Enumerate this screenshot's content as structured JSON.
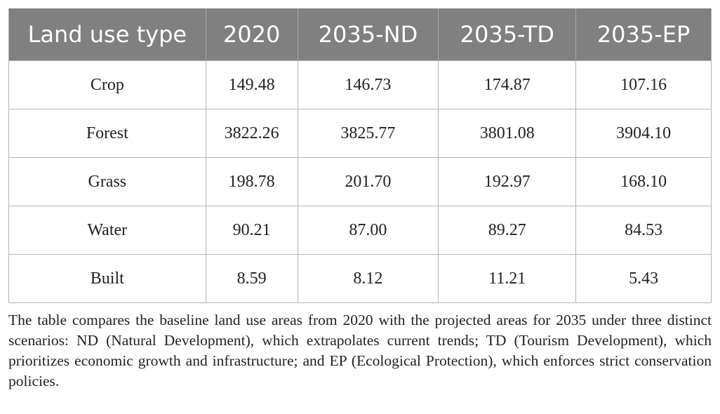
{
  "table": {
    "header": [
      "Land use type",
      "2020",
      "2035-ND",
      "2035-TD",
      "2035-EP"
    ],
    "rows": [
      [
        "Crop",
        "149.48",
        "146.73",
        "174.87",
        "107.16"
      ],
      [
        "Forest",
        "3822.26",
        "3825.77",
        "3801.08",
        "3904.10"
      ],
      [
        "Grass",
        "198.78",
        "201.70",
        "192.97",
        "168.10"
      ],
      [
        "Water",
        "90.21",
        "87.00",
        "89.27",
        "84.53"
      ],
      [
        "Built",
        "8.59",
        "8.12",
        "11.21",
        "5.43"
      ]
    ]
  },
  "caption": "The table compares the baseline land use areas from 2020 with the projected areas for 2035 under three distinct scenarios: ND (Natural Development), which extrapolates current trends; TD (Tourism Development), which prioritizes economic growth and infrastructure; and EP (Ecological Protection), which enforces strict conservation policies."
}
